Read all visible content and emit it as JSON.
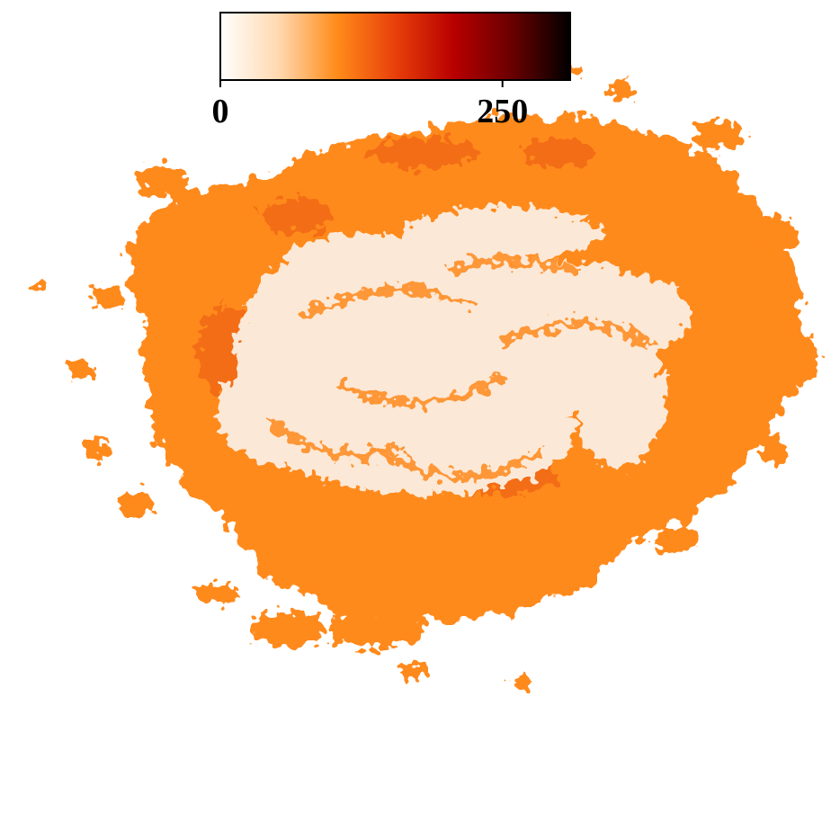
{
  "chart_data": {
    "type": "heatmap",
    "title": "",
    "xlabel": "",
    "ylabel": "",
    "colormap": "gist_heat_r",
    "colorbar": {
      "orientation": "horizontal",
      "placement": "top-center",
      "range": [
        0,
        310
      ],
      "ticks": [
        {
          "value": 0,
          "label": "0"
        },
        {
          "value": 250,
          "label": "250"
        }
      ],
      "color_stops": [
        "#ffffff",
        "#ffd8b0",
        "#ff8c1a",
        "#e8400a",
        "#b80000",
        "#6a0000",
        "#000000"
      ]
    },
    "map": {
      "description_values": {
        "core_level": 10,
        "disk_level": 75,
        "ridge_level": 95,
        "outside": "masked (blank)"
      },
      "colors": {
        "core": "#fce8d6",
        "disk": "#ff8a1e",
        "ridge": "#f26a12",
        "background": "#ffffff"
      }
    }
  }
}
